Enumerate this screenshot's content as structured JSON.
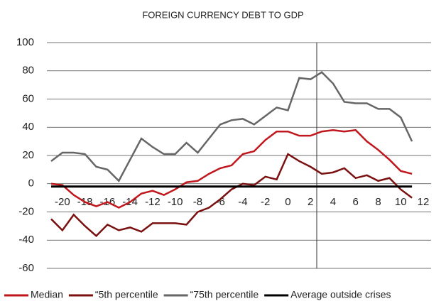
{
  "chart_data": {
    "type": "line",
    "title": "FOREIGN CURRENCY DEBT TO GDP",
    "x": [
      -21,
      -20,
      -19,
      -18,
      -17,
      -16,
      -15,
      -14,
      -13,
      -12,
      -11,
      -10,
      -9,
      -8,
      -7,
      -6,
      -5,
      -4,
      -3,
      -2,
      -1,
      0,
      1,
      2,
      3,
      4,
      5,
      6,
      7,
      8,
      9,
      10,
      11
    ],
    "series": [
      {
        "name": "Median",
        "color": "#c0161c",
        "values": [
          0,
          -1,
          -8,
          -13,
          -16,
          -13,
          -17,
          -13,
          -7,
          -5,
          -8,
          -4,
          1,
          2,
          7,
          11,
          13,
          21,
          23,
          31,
          37,
          37,
          34,
          34,
          37,
          38,
          37,
          38,
          30,
          24,
          17,
          9,
          7
        ]
      },
      {
        "name": "“5th percentile",
        "color": "#7a1010",
        "values": [
          -25,
          -33,
          -22,
          -30,
          -37,
          -29,
          -33,
          -31,
          -34,
          -28,
          -28,
          -28,
          -29,
          -20,
          -17,
          -11,
          -4,
          0,
          -1,
          5,
          3,
          21,
          16,
          12,
          7,
          8,
          11,
          4,
          6,
          2,
          4,
          -4,
          -10
        ]
      },
      {
        "name": "“75th percentile",
        "color": "#666666",
        "values": [
          16,
          22,
          22,
          21,
          12,
          10,
          2,
          17,
          32,
          26,
          21,
          21,
          29,
          22,
          32,
          42,
          45,
          46,
          42,
          48,
          54,
          52,
          75,
          74,
          79,
          71,
          58,
          57,
          57,
          53,
          53,
          47,
          30
        ]
      },
      {
        "name": "Average outside crises",
        "color": "#000000",
        "values": [
          -2,
          -2,
          -2,
          -2,
          -2,
          -2,
          -2,
          -2,
          -2,
          -2,
          -2,
          -2,
          -2,
          -2,
          -2,
          -2,
          -2,
          -2,
          -2,
          -2,
          -2,
          -2,
          -2,
          -2,
          -2,
          -2,
          -2,
          -2,
          -2,
          -2,
          -2,
          -2,
          -2
        ]
      }
    ],
    "xlim": [
      -21,
      12
    ],
    "xticks": [
      -20,
      -18,
      -16,
      -14,
      -12,
      -10,
      -8,
      -6,
      -4,
      -2,
      0,
      2,
      4,
      6,
      8,
      10,
      12
    ],
    "ylim": [
      -60,
      100
    ],
    "yticks": [
      -60,
      -40,
      -20,
      0,
      20,
      40,
      60,
      80,
      100
    ],
    "grid": true,
    "legend": "bottom"
  }
}
